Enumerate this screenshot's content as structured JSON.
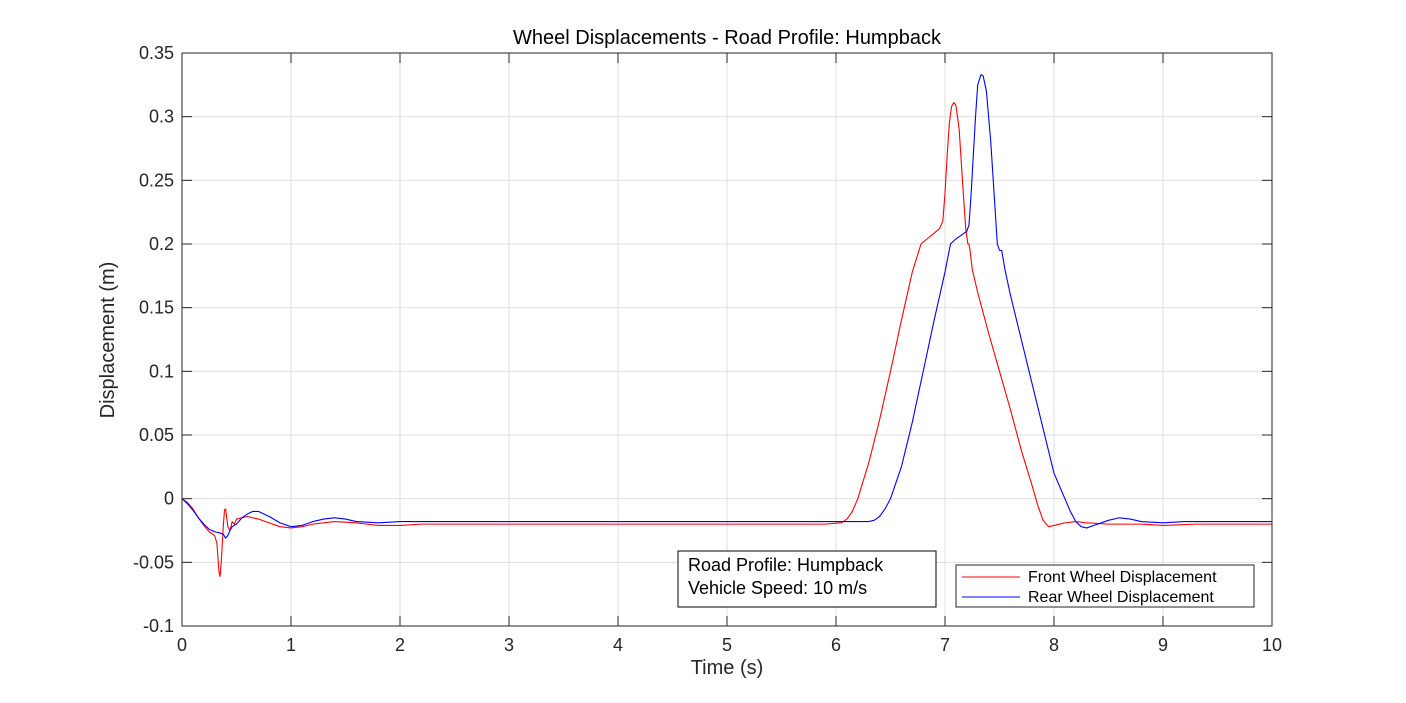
{
  "chart_data": {
    "type": "line",
    "title": "Wheel Displacements - Road Profile: Humpback",
    "xlabel": "Time (s)",
    "ylabel": "Displacement (m)",
    "xlim": [
      0,
      10
    ],
    "ylim": [
      -0.1,
      0.35
    ],
    "grid": true,
    "x_ticks": [
      0,
      1,
      2,
      3,
      4,
      5,
      6,
      7,
      8,
      9,
      10
    ],
    "x_tick_labels": [
      "0",
      "1",
      "2",
      "3",
      "4",
      "5",
      "6",
      "7",
      "8",
      "9",
      "10"
    ],
    "y_ticks": [
      -0.1,
      -0.05,
      0,
      0.05,
      0.1,
      0.15,
      0.2,
      0.25,
      0.3,
      0.35
    ],
    "y_tick_labels": [
      "-0.1",
      "-0.05",
      "0",
      "0.05",
      "0.1",
      "0.15",
      "0.2",
      "0.25",
      "0.3",
      "0.35"
    ],
    "legend_position": "bottom-right",
    "annotation": {
      "lines": [
        "Road Profile: Humpback",
        "Vehicle Speed: 10 m/s"
      ]
    },
    "series": [
      {
        "name": "Front Wheel Displacement",
        "color": "#ff0000",
        "points": [
          [
            0,
            0
          ],
          [
            0.05,
            -0.003
          ],
          [
            0.1,
            -0.008
          ],
          [
            0.15,
            -0.015
          ],
          [
            0.2,
            -0.021
          ],
          [
            0.25,
            -0.026
          ],
          [
            0.3,
            -0.029
          ],
          [
            0.32,
            -0.035
          ],
          [
            0.34,
            -0.058
          ],
          [
            0.35,
            -0.061
          ],
          [
            0.36,
            -0.05
          ],
          [
            0.38,
            -0.02
          ],
          [
            0.39,
            -0.009
          ],
          [
            0.4,
            -0.008
          ],
          [
            0.42,
            -0.022
          ],
          [
            0.44,
            -0.025
          ],
          [
            0.46,
            -0.018
          ],
          [
            0.48,
            -0.02
          ],
          [
            0.5,
            -0.016
          ],
          [
            0.55,
            -0.015
          ],
          [
            0.6,
            -0.014
          ],
          [
            0.7,
            -0.016
          ],
          [
            0.8,
            -0.019
          ],
          [
            0.9,
            -0.022
          ],
          [
            1.0,
            -0.023
          ],
          [
            1.1,
            -0.022
          ],
          [
            1.2,
            -0.02
          ],
          [
            1.4,
            -0.018
          ],
          [
            1.6,
            -0.019
          ],
          [
            1.8,
            -0.021
          ],
          [
            2.0,
            -0.021
          ],
          [
            2.2,
            -0.02
          ],
          [
            2.5,
            -0.02
          ],
          [
            3.0,
            -0.02
          ],
          [
            3.5,
            -0.02
          ],
          [
            4.0,
            -0.02
          ],
          [
            4.5,
            -0.02
          ],
          [
            5.0,
            -0.02
          ],
          [
            5.5,
            -0.02
          ],
          [
            5.9,
            -0.02
          ],
          [
            6.05,
            -0.019
          ],
          [
            6.1,
            -0.016
          ],
          [
            6.15,
            -0.01
          ],
          [
            6.2,
            0.0
          ],
          [
            6.3,
            0.028
          ],
          [
            6.4,
            0.062
          ],
          [
            6.5,
            0.1
          ],
          [
            6.6,
            0.14
          ],
          [
            6.7,
            0.178
          ],
          [
            6.78,
            0.2
          ],
          [
            6.85,
            0.205
          ],
          [
            6.95,
            0.212
          ],
          [
            6.98,
            0.218
          ],
          [
            7.0,
            0.24
          ],
          [
            7.02,
            0.27
          ],
          [
            7.04,
            0.295
          ],
          [
            7.06,
            0.308
          ],
          [
            7.08,
            0.311
          ],
          [
            7.1,
            0.309
          ],
          [
            7.13,
            0.29
          ],
          [
            7.16,
            0.25
          ],
          [
            7.19,
            0.212
          ],
          [
            7.21,
            0.2
          ],
          [
            7.22,
            0.2
          ],
          [
            7.23,
            0.195
          ],
          [
            7.25,
            0.18
          ],
          [
            7.3,
            0.162
          ],
          [
            7.4,
            0.13
          ],
          [
            7.5,
            0.1
          ],
          [
            7.6,
            0.07
          ],
          [
            7.7,
            0.038
          ],
          [
            7.8,
            0.01
          ],
          [
            7.85,
            -0.005
          ],
          [
            7.9,
            -0.017
          ],
          [
            7.95,
            -0.022
          ],
          [
            8.0,
            -0.021
          ],
          [
            8.1,
            -0.019
          ],
          [
            8.2,
            -0.018
          ],
          [
            8.3,
            -0.019
          ],
          [
            8.5,
            -0.02
          ],
          [
            8.8,
            -0.02
          ],
          [
            9.0,
            -0.021
          ],
          [
            9.3,
            -0.02
          ],
          [
            9.6,
            -0.02
          ],
          [
            10.0,
            -0.02
          ]
        ]
      },
      {
        "name": "Rear Wheel Displacement",
        "color": "#0000ff",
        "points": [
          [
            0,
            0
          ],
          [
            0.05,
            -0.004
          ],
          [
            0.1,
            -0.009
          ],
          [
            0.15,
            -0.015
          ],
          [
            0.2,
            -0.02
          ],
          [
            0.25,
            -0.024
          ],
          [
            0.3,
            -0.026
          ],
          [
            0.35,
            -0.027
          ],
          [
            0.38,
            -0.028
          ],
          [
            0.4,
            -0.031
          ],
          [
            0.42,
            -0.029
          ],
          [
            0.44,
            -0.025
          ],
          [
            0.46,
            -0.022
          ],
          [
            0.5,
            -0.02
          ],
          [
            0.55,
            -0.015
          ],
          [
            0.6,
            -0.012
          ],
          [
            0.65,
            -0.01
          ],
          [
            0.7,
            -0.01
          ],
          [
            0.8,
            -0.014
          ],
          [
            0.9,
            -0.019
          ],
          [
            1.0,
            -0.022
          ],
          [
            1.1,
            -0.021
          ],
          [
            1.2,
            -0.018
          ],
          [
            1.3,
            -0.016
          ],
          [
            1.4,
            -0.015
          ],
          [
            1.5,
            -0.016
          ],
          [
            1.6,
            -0.018
          ],
          [
            1.8,
            -0.019
          ],
          [
            2.0,
            -0.018
          ],
          [
            2.2,
            -0.018
          ],
          [
            2.5,
            -0.018
          ],
          [
            3.0,
            -0.018
          ],
          [
            3.5,
            -0.018
          ],
          [
            4.0,
            -0.018
          ],
          [
            4.5,
            -0.018
          ],
          [
            5.0,
            -0.018
          ],
          [
            5.5,
            -0.018
          ],
          [
            6.0,
            -0.018
          ],
          [
            6.2,
            -0.018
          ],
          [
            6.3,
            -0.018
          ],
          [
            6.35,
            -0.017
          ],
          [
            6.4,
            -0.014
          ],
          [
            6.45,
            -0.008
          ],
          [
            6.5,
            0.0
          ],
          [
            6.6,
            0.025
          ],
          [
            6.7,
            0.06
          ],
          [
            6.8,
            0.1
          ],
          [
            6.9,
            0.14
          ],
          [
            7.0,
            0.178
          ],
          [
            7.05,
            0.2
          ],
          [
            7.1,
            0.204
          ],
          [
            7.2,
            0.21
          ],
          [
            7.22,
            0.215
          ],
          [
            7.24,
            0.24
          ],
          [
            7.26,
            0.27
          ],
          [
            7.28,
            0.3
          ],
          [
            7.3,
            0.325
          ],
          [
            7.33,
            0.333
          ],
          [
            7.35,
            0.332
          ],
          [
            7.38,
            0.32
          ],
          [
            7.42,
            0.28
          ],
          [
            7.45,
            0.24
          ],
          [
            7.48,
            0.2
          ],
          [
            7.5,
            0.195
          ],
          [
            7.52,
            0.195
          ],
          [
            7.55,
            0.18
          ],
          [
            7.6,
            0.16
          ],
          [
            7.7,
            0.125
          ],
          [
            7.8,
            0.09
          ],
          [
            7.9,
            0.055
          ],
          [
            8.0,
            0.02
          ],
          [
            8.1,
            0.0
          ],
          [
            8.15,
            -0.01
          ],
          [
            8.2,
            -0.018
          ],
          [
            8.25,
            -0.022
          ],
          [
            8.3,
            -0.023
          ],
          [
            8.4,
            -0.02
          ],
          [
            8.5,
            -0.017
          ],
          [
            8.6,
            -0.015
          ],
          [
            8.7,
            -0.016
          ],
          [
            8.8,
            -0.018
          ],
          [
            9.0,
            -0.019
          ],
          [
            9.2,
            -0.018
          ],
          [
            9.4,
            -0.018
          ],
          [
            9.6,
            -0.018
          ],
          [
            9.8,
            -0.018
          ],
          [
            10.0,
            -0.018
          ]
        ]
      }
    ]
  }
}
